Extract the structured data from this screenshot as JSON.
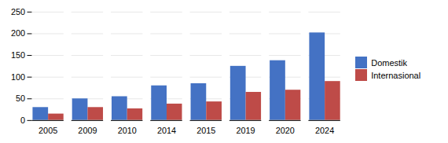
{
  "chart_data": {
    "type": "bar",
    "categories": [
      "2005",
      "2009",
      "2010",
      "2014",
      "2015",
      "2019",
      "2020",
      "2024"
    ],
    "series": [
      {
        "name": "Domestik",
        "color": "#4472C4",
        "values": [
          30,
          50,
          55,
          80,
          85,
          125,
          138,
          202
        ]
      },
      {
        "name": "Internasional",
        "color": "#BE4B48",
        "values": [
          15,
          30,
          27,
          38,
          43,
          65,
          70,
          90
        ]
      }
    ],
    "ylim": [
      0,
      250
    ],
    "yticks": [
      0,
      50,
      100,
      150,
      200,
      250
    ],
    "grid": true,
    "legend": "right"
  }
}
